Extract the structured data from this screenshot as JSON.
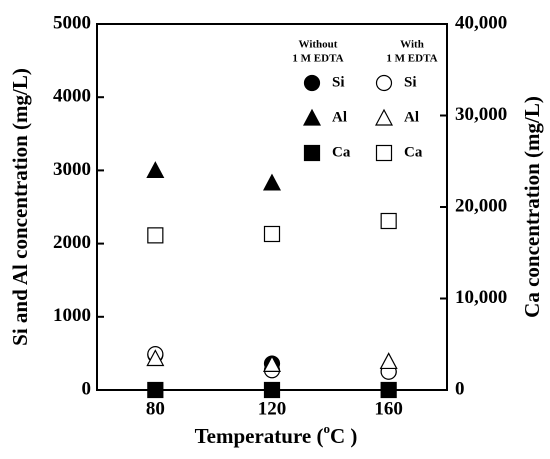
{
  "chart_data": {
    "type": "scatter",
    "xlabel": [
      "Temperature (",
      "o",
      "C )"
    ],
    "ylabel": "Si and Al concentration (mg/L)",
    "y2label": "Ca concentration (mg/L)",
    "xlim": [
      60,
      180
    ],
    "xticks": [
      80,
      120,
      160
    ],
    "ylim": [
      0,
      5000
    ],
    "yticks": [
      0,
      1000,
      2000,
      3000,
      4000,
      5000
    ],
    "y2lim": [
      0,
      40000
    ],
    "y2ticks": [
      0,
      {
        "value": 10000,
        "label": "10,000"
      },
      {
        "value": 20000,
        "label": "20,000"
      },
      {
        "value": 30000,
        "label": "30,000"
      },
      {
        "value": 40000,
        "label": "40,000"
      }
    ],
    "x": [
      80,
      120,
      160
    ],
    "legend_headers": [
      [
        "Without",
        "1 M EDTA"
      ],
      [
        "With",
        "1 M EDTA"
      ]
    ],
    "series": [
      {
        "name": "Si",
        "group": 0,
        "marker": "circle",
        "filled": true,
        "color": "#000000",
        "values": [
          480,
          360,
          250
        ]
      },
      {
        "name": "Al",
        "group": 0,
        "marker": "triangle",
        "filled": true,
        "color": "#000000",
        "values": [
          3000,
          2830,
          null
        ]
      },
      {
        "name": "Ca",
        "group": 0,
        "marker": "square",
        "filled": true,
        "color": "#000000",
        "axis": "y2",
        "values": [
          0,
          0,
          0
        ]
      },
      {
        "name": "Si",
        "group": 1,
        "marker": "circle",
        "filled": false,
        "color": "#000000",
        "values": [
          490,
          270,
          250
        ]
      },
      {
        "name": "Al",
        "group": 1,
        "marker": "triangle",
        "filled": false,
        "color": "#000000",
        "values": [
          430,
          350,
          390
        ]
      },
      {
        "name": "Ca",
        "group": 1,
        "marker": "square",
        "filled": false,
        "color": "#000000",
        "axis": "y2",
        "values": [
          16900,
          17050,
          18470
        ]
      }
    ]
  }
}
